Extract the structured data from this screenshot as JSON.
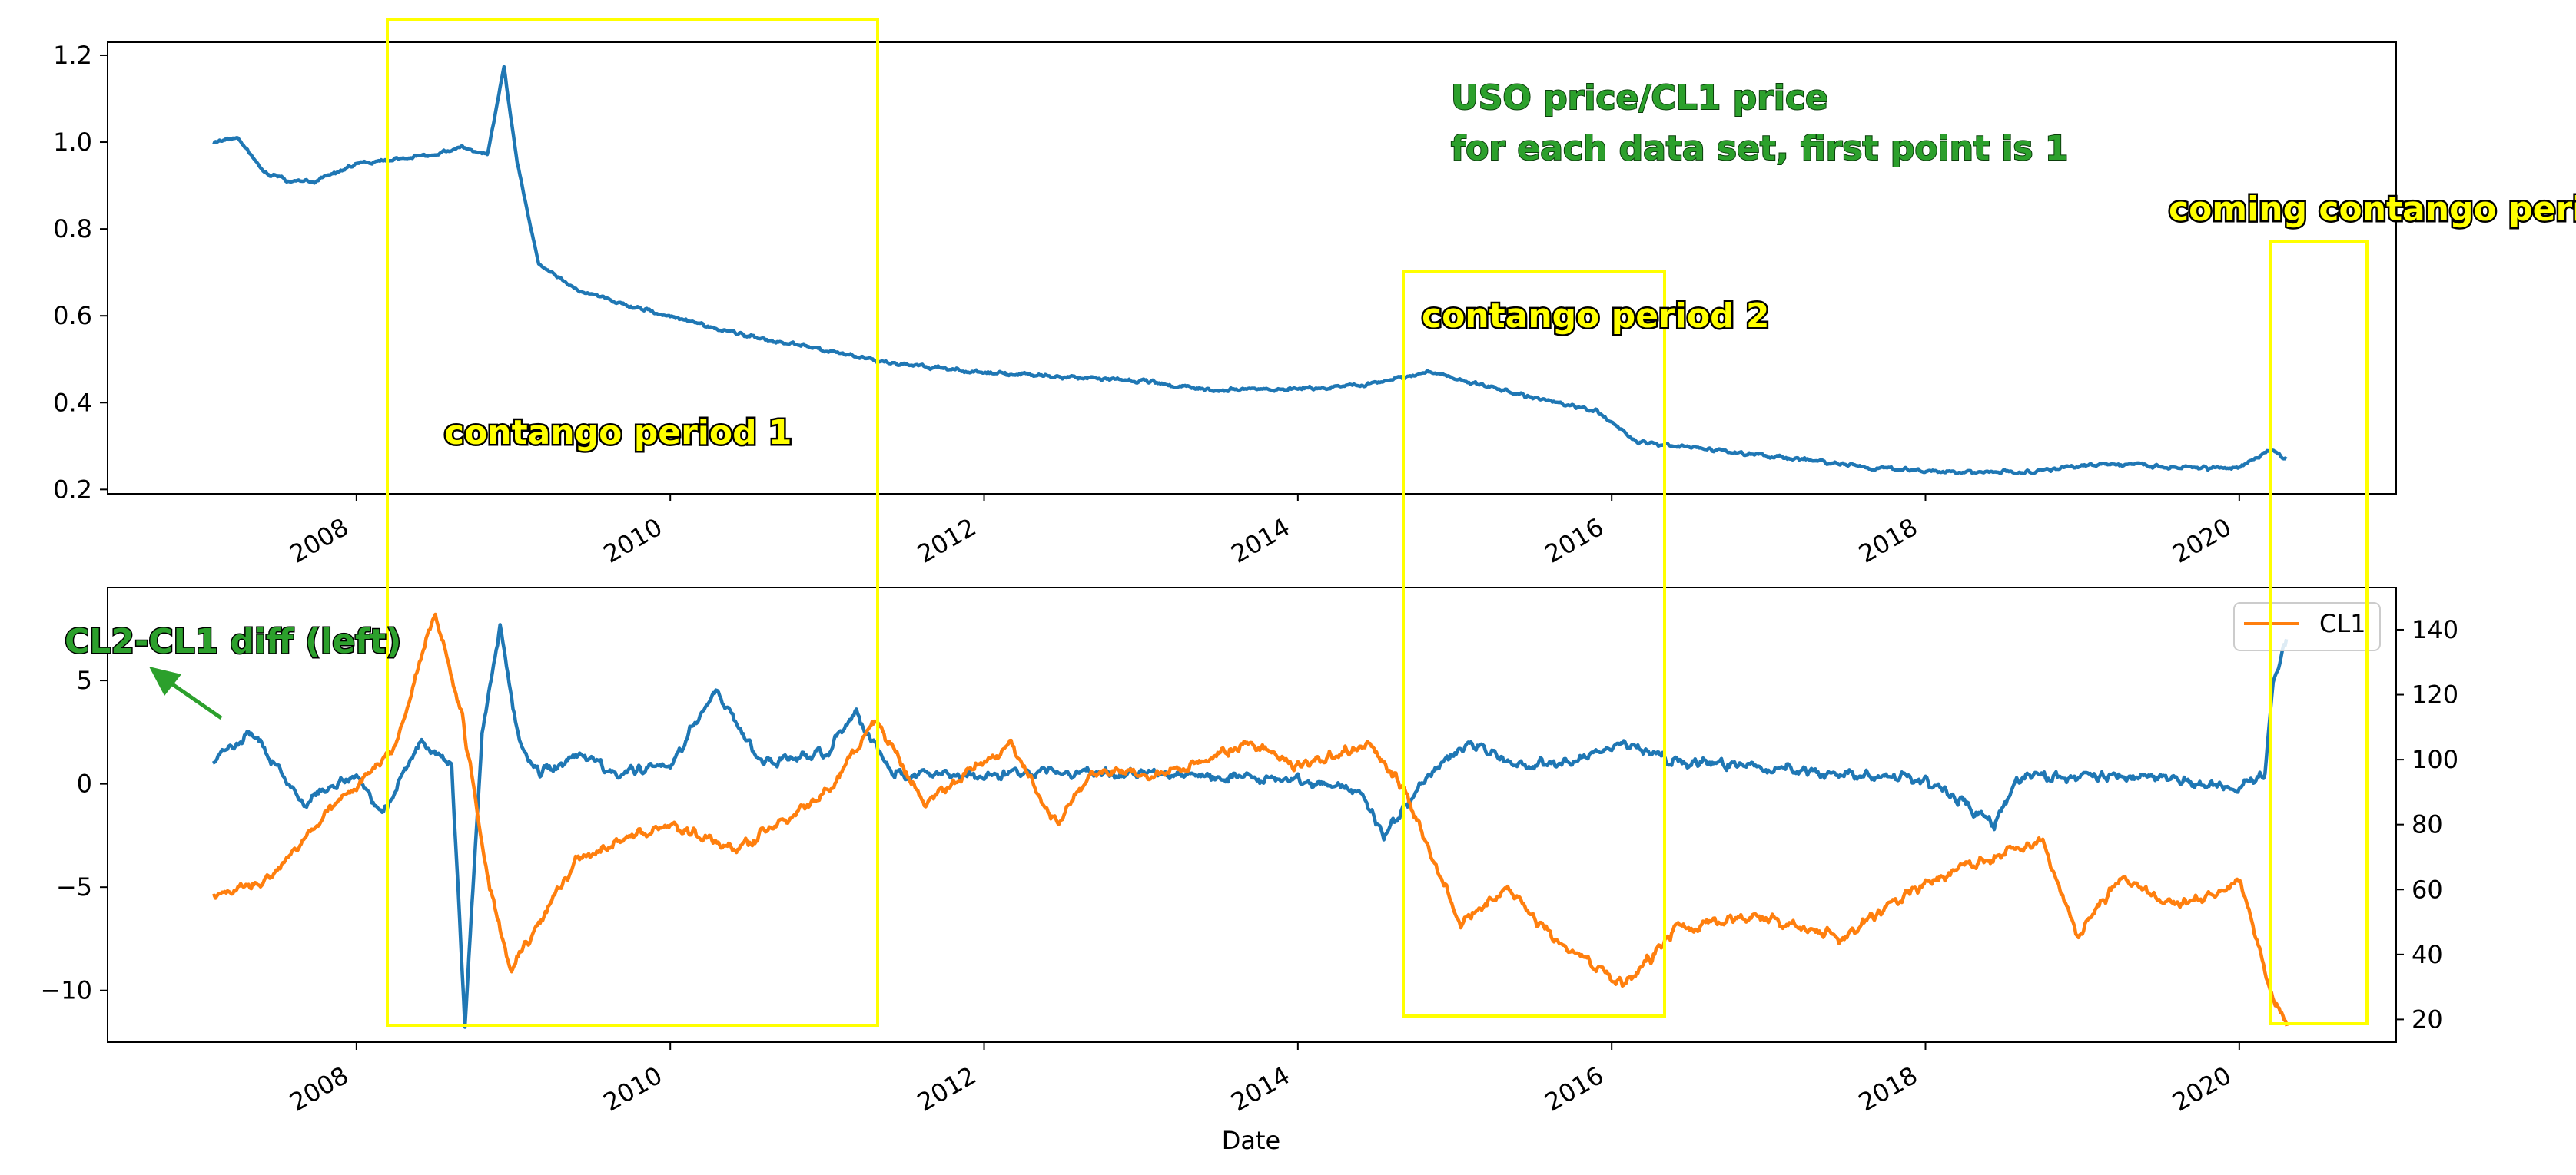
{
  "chart_data": [
    {
      "type": "line",
      "title": "",
      "xlabel": "",
      "ylabel": "",
      "xlim": [
        "2006-06-01",
        "2021-01-01"
      ],
      "ylim": [
        0.19,
        1.23
      ],
      "yticks": [
        0.2,
        0.4,
        0.6,
        0.8,
        1.0,
        1.2
      ],
      "ytick_labels": [
        "0.2",
        "0.4",
        "0.6",
        "0.8",
        "1.0",
        "1.2"
      ],
      "xticks": [
        "2008",
        "2010",
        "2012",
        "2014",
        "2016",
        "2018",
        "2020"
      ],
      "grid": false,
      "series": [
        {
          "color": "#1f77b4",
          "x": [
            "2007-02-01",
            "2007-04-01",
            "2007-06-01",
            "2007-08-01",
            "2007-10-01",
            "2008-01-01",
            "2008-04-01",
            "2008-07-01",
            "2008-09-01",
            "2008-11-01",
            "2008-12-10",
            "2009-01-10",
            "2009-03-01",
            "2009-06-01",
            "2009-09-01",
            "2010-01-01",
            "2010-06-01",
            "2011-01-01",
            "2011-06-01",
            "2012-01-01",
            "2012-06-01",
            "2013-01-01",
            "2013-06-01",
            "2014-01-01",
            "2014-06-01",
            "2014-11-01",
            "2015-06-01",
            "2015-12-01",
            "2016-03-01",
            "2016-09-01",
            "2017-03-01",
            "2017-09-01",
            "2018-03-01",
            "2018-09-01",
            "2019-03-01",
            "2019-09-01",
            "2020-01-01",
            "2020-03-15",
            "2020-04-20"
          ],
          "y": [
            1.0,
            1.01,
            0.93,
            0.91,
            0.91,
            0.95,
            0.96,
            0.97,
            0.99,
            0.97,
            1.17,
            0.95,
            0.72,
            0.66,
            0.63,
            0.6,
            0.56,
            0.52,
            0.49,
            0.47,
            0.46,
            0.45,
            0.43,
            0.43,
            0.44,
            0.47,
            0.42,
            0.38,
            0.31,
            0.29,
            0.27,
            0.25,
            0.24,
            0.24,
            0.26,
            0.25,
            0.25,
            0.29,
            0.27
          ]
        }
      ],
      "annotations": [
        {
          "text": "USO price/CL1 price",
          "style": "green"
        },
        {
          "text": "for each data set, first point is 1",
          "style": "green"
        },
        {
          "text": "contango period 1",
          "style": "yellow"
        },
        {
          "text": "contango period 2",
          "style": "yellow"
        },
        {
          "text": "coming contango period",
          "style": "yellow"
        }
      ]
    },
    {
      "type": "line",
      "title": "",
      "xlabel": "Date",
      "ylabel": "",
      "xlim": [
        "2006-06-01",
        "2021-01-01"
      ],
      "ylim_left": [
        -12.5,
        9.5
      ],
      "ylim_right": [
        13,
        153
      ],
      "yticks_left": [
        -10,
        -5,
        0,
        5
      ],
      "ytick_labels_left": [
        "−10",
        "−5",
        "0",
        "5"
      ],
      "yticks_right": [
        20,
        40,
        60,
        80,
        100,
        120,
        140
      ],
      "ytick_labels_right": [
        "20",
        "40",
        "60",
        "80",
        "100",
        "120",
        "140"
      ],
      "xticks": [
        "2008",
        "2010",
        "2012",
        "2014",
        "2016",
        "2018",
        "2020"
      ],
      "grid": false,
      "legend": {
        "placement": "top-right",
        "entries": [
          "CL1"
        ]
      },
      "series": [
        {
          "axis": "left",
          "color": "#1f77b4",
          "x": [
            "2007-02-01",
            "2007-05-01",
            "2007-09-01",
            "2008-01-01",
            "2008-03-01",
            "2008-06-01",
            "2008-08-10",
            "2008-09-10",
            "2008-10-20",
            "2008-12-01",
            "2009-01-15",
            "2009-03-01",
            "2009-06-01",
            "2009-09-01",
            "2010-01-01",
            "2010-04-20",
            "2010-08-01",
            "2011-01-01",
            "2011-03-10",
            "2011-06-01",
            "2012-01-01",
            "2012-06-01",
            "2013-01-01",
            "2013-06-01",
            "2014-01-01",
            "2014-06-01",
            "2014-07-20",
            "2014-11-01",
            "2015-02-01",
            "2015-06-01",
            "2015-10-01",
            "2016-02-01",
            "2016-06-01",
            "2017-01-01",
            "2017-06-01",
            "2018-01-01",
            "2018-06-10",
            "2018-08-01",
            "2019-01-01",
            "2019-06-01",
            "2020-01-01",
            "2020-03-01",
            "2020-03-20",
            "2020-04-20"
          ],
          "y": [
            1.0,
            2.5,
            -1.0,
            0.5,
            -1.5,
            2.0,
            1.0,
            -11.5,
            2.5,
            7.5,
            2.0,
            0.5,
            1.5,
            0.5,
            1.0,
            4.5,
            1.0,
            1.5,
            3.5,
            0.5,
            0.3,
            0.6,
            0.5,
            0.3,
            0.2,
            -0.5,
            -2.5,
            0.5,
            2.0,
            1.0,
            1.0,
            2.0,
            1.0,
            0.8,
            0.5,
            0.2,
            -2.0,
            0.3,
            0.4,
            0.3,
            -0.2,
            0.5,
            5.0,
            7.0
          ]
        },
        {
          "name": "CL1",
          "axis": "right",
          "color": "#ff7f0e",
          "x": [
            "2007-02-01",
            "2007-06-01",
            "2007-10-01",
            "2008-01-01",
            "2008-04-01",
            "2008-07-03",
            "2008-09-01",
            "2008-11-01",
            "2008-12-25",
            "2009-03-01",
            "2009-06-01",
            "2009-10-01",
            "2010-01-01",
            "2010-06-01",
            "2011-01-01",
            "2011-04-25",
            "2011-08-15",
            "2012-03-01",
            "2012-06-20",
            "2012-09-10",
            "2013-03-01",
            "2013-09-01",
            "2014-01-01",
            "2014-06-15",
            "2014-09-01",
            "2015-01-15",
            "2015-05-01",
            "2015-08-20",
            "2016-02-01",
            "2016-06-01",
            "2016-12-01",
            "2017-06-20",
            "2018-01-01",
            "2018-06-01",
            "2018-10-01",
            "2018-12-20",
            "2019-04-01",
            "2019-08-01",
            "2020-01-05",
            "2020-03-10",
            "2020-04-21"
          ],
          "y": [
            58,
            62,
            80,
            92,
            105,
            145,
            115,
            65,
            35,
            50,
            70,
            76,
            80,
            72,
            90,
            112,
            86,
            105,
            80,
            96,
            95,
            105,
            98,
            105,
            92,
            50,
            60,
            45,
            30,
            48,
            52,
            45,
            62,
            70,
            75,
            45,
            64,
            55,
            62,
            30,
            18
          ]
        }
      ],
      "annotations": [
        {
          "text": "CL2-CL1 diff (left)",
          "style": "green"
        },
        {
          "text": "contango period 1",
          "style": "yellow"
        }
      ]
    }
  ]
}
